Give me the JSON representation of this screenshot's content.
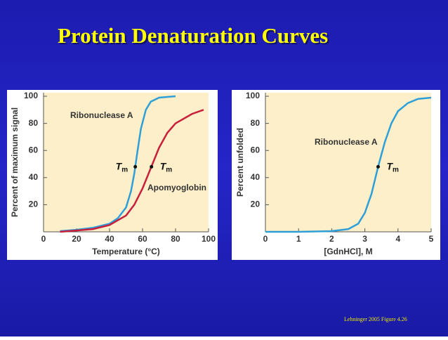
{
  "title": "Protein Denaturation Curves",
  "footnote": "Lehninger 2005 Figure 4.26",
  "chart_data": [
    {
      "type": "line",
      "xlabel": "Temperature (°C)",
      "ylabel": "Percent of maximum signal",
      "xlim": [
        0,
        100
      ],
      "ylim": [
        0,
        102.6
      ],
      "xticks": [
        0,
        20,
        40,
        60,
        80,
        100
      ],
      "yticks": [
        20,
        40,
        60,
        80,
        100
      ],
      "series": [
        {
          "name": "Ribonuclease A",
          "color": "#2f9fd8",
          "x": [
            10,
            20,
            30,
            40,
            45,
            50,
            53,
            55,
            57,
            59,
            62,
            65,
            70,
            80
          ],
          "values": [
            0.5,
            1.5,
            3,
            6,
            10,
            18,
            30,
            43,
            60,
            76,
            90,
            96,
            99,
            100
          ]
        },
        {
          "name": "Apomyoglobin",
          "color": "#c8203c",
          "x": [
            10,
            20,
            30,
            40,
            50,
            55,
            60,
            65,
            70,
            75,
            80,
            90,
            97
          ],
          "values": [
            0,
            1,
            2,
            5,
            12,
            20,
            32,
            47,
            62,
            73,
            80,
            87,
            90
          ]
        }
      ],
      "annotations": [
        {
          "symbol": "T",
          "subscript": "m",
          "x": 55.6,
          "y": 48
        },
        {
          "symbol": "T",
          "subscript": "m",
          "x": 65.4,
          "y": 48
        }
      ]
    },
    {
      "type": "line",
      "xlabel": "[GdnHCl], M",
      "ylabel": "Percent unfolded",
      "xlim": [
        0,
        5
      ],
      "ylim": [
        0,
        102.6
      ],
      "xticks": [
        0,
        1,
        2,
        3,
        4,
        5
      ],
      "yticks": [
        20,
        40,
        60,
        80,
        100
      ],
      "series": [
        {
          "name": "Ribonuclease A",
          "color": "#2f9fd8",
          "x": [
            0,
            1,
            2,
            2.5,
            2.8,
            3,
            3.2,
            3.4,
            3.6,
            3.8,
            4,
            4.3,
            4.6,
            5
          ],
          "values": [
            0,
            0,
            0.5,
            2,
            6,
            14,
            28,
            48,
            66,
            80,
            89,
            95,
            98,
            99
          ]
        }
      ],
      "annotations": [
        {
          "symbol": "T",
          "subscript": "m",
          "x": 3.4,
          "y": 48
        }
      ]
    }
  ]
}
